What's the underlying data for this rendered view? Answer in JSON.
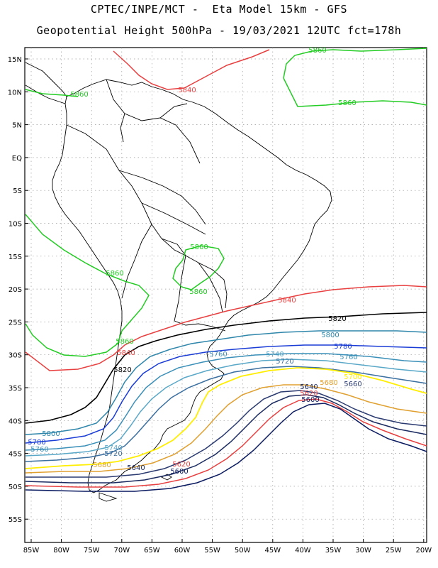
{
  "title": {
    "line1": "CPTEC/INPE/MCT -  Eta Model 15km - GFS",
    "line2": "Geopotential Height 500hPa - 19/03/2021 12UTC fct=178h"
  },
  "axes": {
    "lon_labels": [
      "85W",
      "80W",
      "75W",
      "70W",
      "65W",
      "60W",
      "55W",
      "50W",
      "45W",
      "40W",
      "35W",
      "30W",
      "25W",
      "20W"
    ],
    "lat_labels": [
      "15N",
      "10N",
      "5N",
      "EQ",
      "5S",
      "10S",
      "15S",
      "20S",
      "25S",
      "30S",
      "35S",
      "40S",
      "45S",
      "50S",
      "55S"
    ]
  },
  "colors": {
    "c5860": "#22cc22",
    "c5840": "#e84040",
    "c5820": "#000000",
    "c5800": "#2e86ab",
    "c5780": "#1a3cd6",
    "c5760": "#3a8fb8",
    "c5740": "#5aa8c8",
    "c5720": "#3a6fa0",
    "c5700": "#ffee00",
    "c5680": "#e0a030",
    "c5660": "#2a3a70",
    "c5640": "#1a2a60",
    "c5620": "#e84040",
    "c5600": "#0a1a60"
  },
  "contour_labels": [
    {
      "text": "5860",
      "color": "#22cc22"
    },
    {
      "text": "5860",
      "color": "#22cc22"
    },
    {
      "text": "5860",
      "color": "#22cc22"
    },
    {
      "text": "5860",
      "color": "#22cc22"
    },
    {
      "text": "5860",
      "color": "#22cc22"
    },
    {
      "text": "5860",
      "color": "#22cc22"
    },
    {
      "text": "5860",
      "color": "#22cc22"
    },
    {
      "text": "5840",
      "color": "#e84040"
    },
    {
      "text": "5840",
      "color": "#e84040"
    },
    {
      "text": "5840",
      "color": "#e84040"
    },
    {
      "text": "5820",
      "color": "#000000"
    },
    {
      "text": "5820",
      "color": "#000000"
    },
    {
      "text": "5800",
      "color": "#2e86ab"
    },
    {
      "text": "5800",
      "color": "#2e86ab"
    },
    {
      "text": "5780",
      "color": "#1a3cd6"
    },
    {
      "text": "5780",
      "color": "#1a3cd6"
    },
    {
      "text": "5760",
      "color": "#3a8fb8"
    },
    {
      "text": "5760",
      "color": "#3a8fb8"
    },
    {
      "text": "5760",
      "color": "#3a8fb8"
    },
    {
      "text": "5740",
      "color": "#5aa8c8"
    },
    {
      "text": "5740",
      "color": "#5aa8c8"
    },
    {
      "text": "5720",
      "color": "#3a6fa0"
    },
    {
      "text": "5720",
      "color": "#3a6fa0"
    },
    {
      "text": "5700",
      "color": "#ffee00"
    },
    {
      "text": "5680",
      "color": "#e0a030"
    },
    {
      "text": "5680",
      "color": "#e0a030"
    },
    {
      "text": "5660",
      "color": "#2a3a70"
    },
    {
      "text": "5640",
      "color": "#1a2a60"
    },
    {
      "text": "5640",
      "color": "#1a2a60"
    },
    {
      "text": "5620",
      "color": "#e84040"
    },
    {
      "text": "5620",
      "color": "#e84040"
    },
    {
      "text": "5600",
      "color": "#0a1a60"
    },
    {
      "text": "5600",
      "color": "#0a1a60"
    }
  ]
}
